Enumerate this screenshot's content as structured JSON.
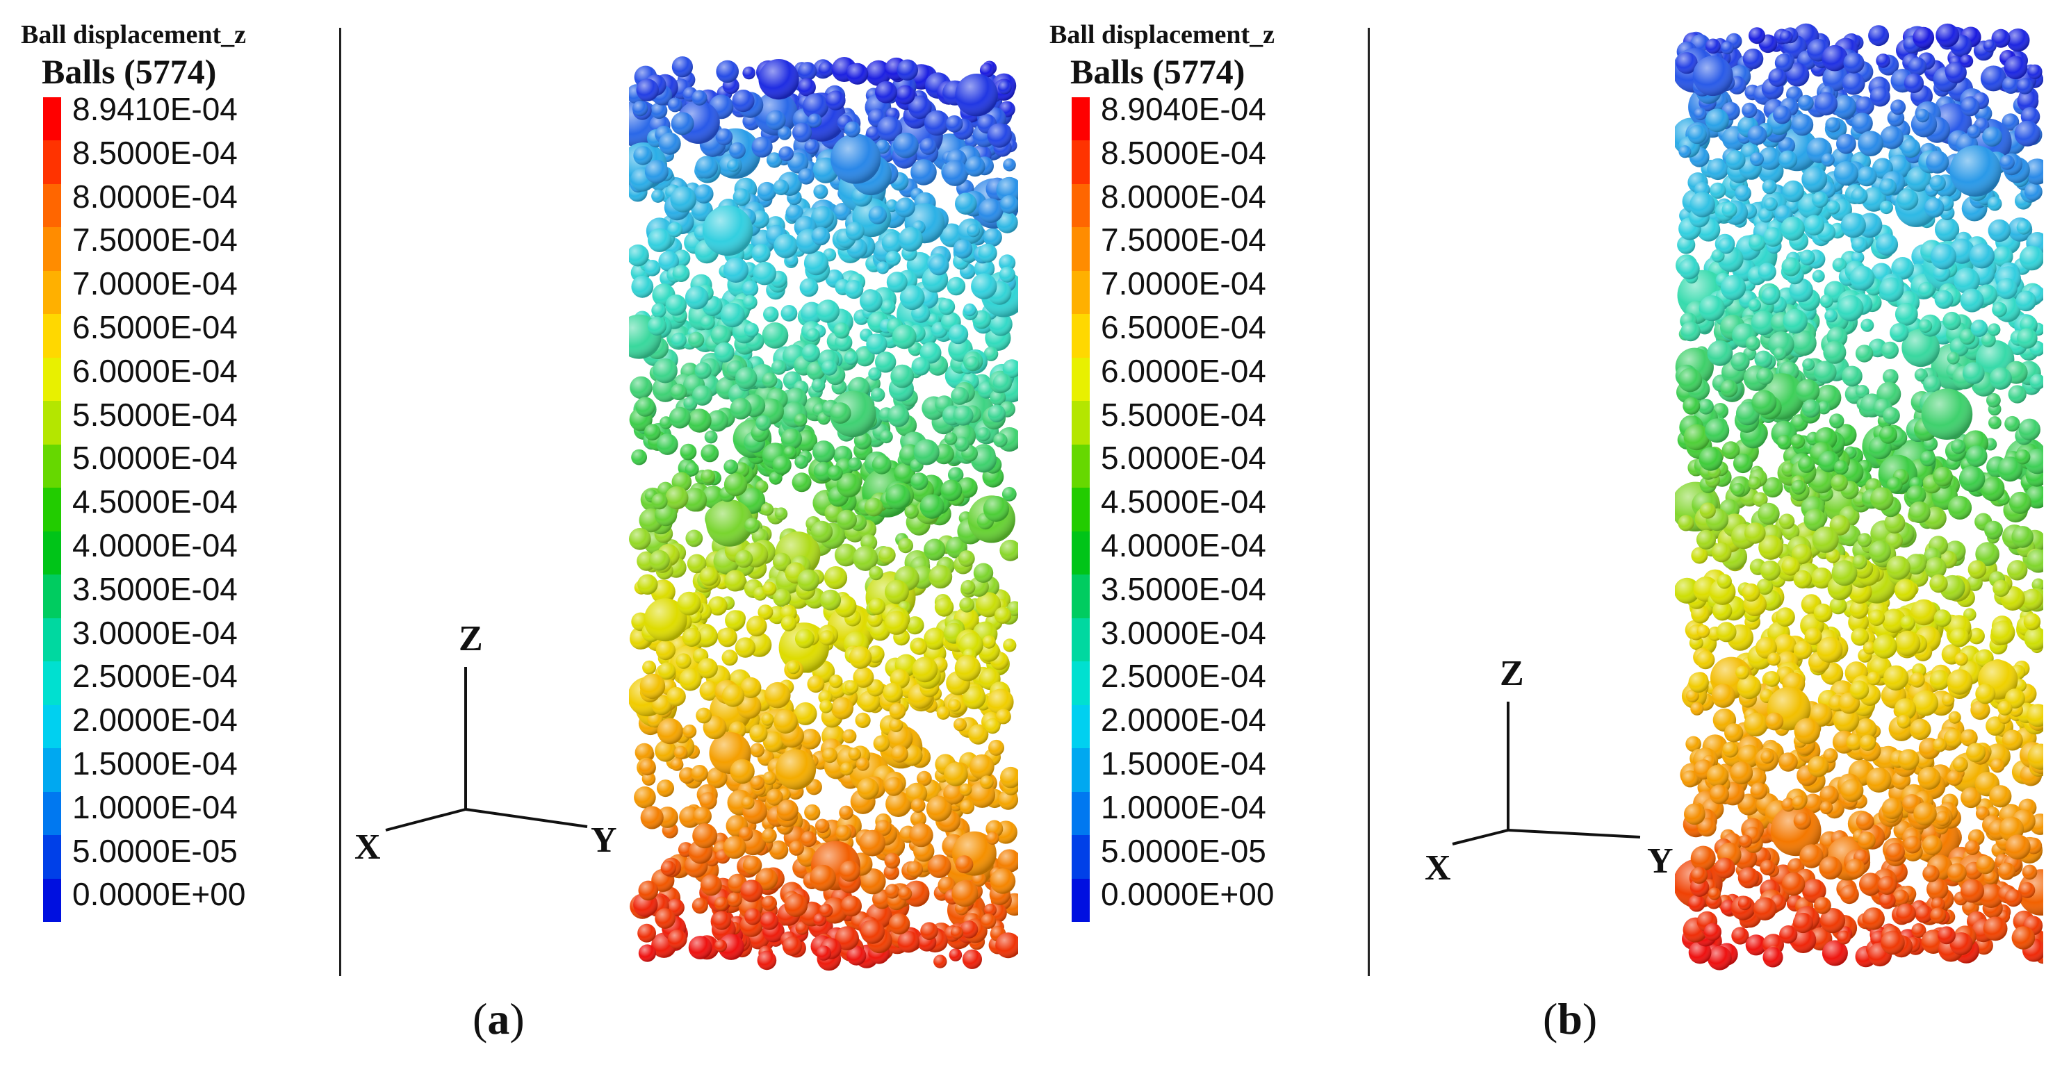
{
  "panels": [
    {
      "legend_title": "Ball displacement_z",
      "legend_subtitle": "Balls (5774)",
      "legend_values": [
        "8.9410E-04",
        "8.5000E-04",
        "8.0000E-04",
        "7.5000E-04",
        "7.0000E-04",
        "6.5000E-04",
        "6.0000E-04",
        "5.5000E-04",
        "5.0000E-04",
        "4.5000E-04",
        "4.0000E-04",
        "3.5000E-04",
        "3.0000E-04",
        "2.5000E-04",
        "2.0000E-04",
        "1.5000E-04",
        "1.0000E-04",
        "5.0000E-05",
        "0.0000E+00"
      ],
      "axis_labels": {
        "z": "Z",
        "x": "X",
        "y": "Y"
      },
      "caption_open": "(",
      "caption_letter": "a",
      "caption_close": ")"
    },
    {
      "legend_title": "Ball displacement_z",
      "legend_subtitle": "Balls (5774)",
      "legend_values": [
        "8.9040E-04",
        "8.5000E-04",
        "8.0000E-04",
        "7.5000E-04",
        "7.0000E-04",
        "6.5000E-04",
        "6.0000E-04",
        "5.5000E-04",
        "5.0000E-04",
        "4.5000E-04",
        "4.0000E-04",
        "3.5000E-04",
        "3.0000E-04",
        "2.5000E-04",
        "2.0000E-04",
        "1.5000E-04",
        "1.0000E-04",
        "5.0000E-05",
        "0.0000E+00"
      ],
      "axis_labels": {
        "z": "Z",
        "x": "X",
        "y": "Y"
      },
      "caption_open": "(",
      "caption_letter": "b",
      "caption_close": ")"
    }
  ],
  "colorbar_colors": [
    "#ff0000",
    "#ff3300",
    "#ff6600",
    "#ff8c00",
    "#ffb000",
    "#ffd800",
    "#e8f000",
    "#b4e600",
    "#66d800",
    "#22cc00",
    "#00c418",
    "#00cc60",
    "#00d8a0",
    "#00e0d0",
    "#00d0f0",
    "#00a8f0",
    "#0078f0",
    "#0040e8",
    "#0010e0"
  ],
  "column_colors": [
    "#1a1ae0",
    "#2a5ce8",
    "#2aa8e8",
    "#33d0e0",
    "#33ddbb",
    "#40d27a",
    "#3ccc3c",
    "#8fd82a",
    "#d8e000",
    "#f0d000",
    "#f5a800",
    "#f58a00",
    "#f04a00",
    "#ee1010"
  ]
}
